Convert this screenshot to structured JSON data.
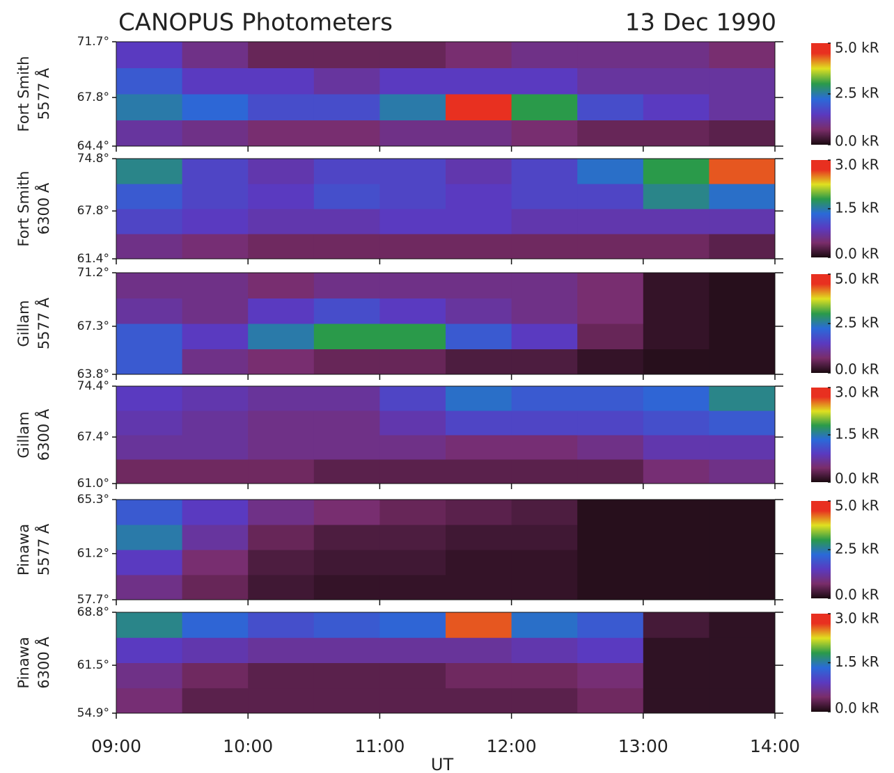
{
  "chart_data": {
    "type": "heatmap",
    "title": "CANOPUS Photometers",
    "subtitle": "13 Dec 1990",
    "xlabel": "UT",
    "xlim": [
      9,
      14
    ],
    "xticks": [
      {
        "value": 9,
        "label": "09:00"
      },
      {
        "value": 10,
        "label": "10:00"
      },
      {
        "value": 11,
        "label": "11:00"
      },
      {
        "value": 12,
        "label": "12:00"
      },
      {
        "value": 13,
        "label": "13:00"
      },
      {
        "value": 14,
        "label": "14:00"
      }
    ],
    "panels": [
      {
        "station": "Fort Smith",
        "line": "5577 Å",
        "ylim": [
          64.4,
          71.7
        ],
        "yticks": [
          {
            "value": 64.4,
            "label": "64.4°"
          },
          {
            "value": 67.8,
            "label": "67.8°"
          },
          {
            "value": 71.7,
            "label": "71.7°"
          }
        ],
        "clim": [
          0,
          5
        ],
        "cticks": [
          {
            "value": 0,
            "label": "0.0 kR"
          },
          {
            "value": 2.5,
            "label": "2.5 kR"
          },
          {
            "value": 5,
            "label": "5.0 kR"
          }
        ],
        "z": [
          [
            1.2,
            1.0,
            0.8,
            0.8,
            1.0,
            1.0,
            0.8,
            0.6,
            0.6,
            0.5
          ],
          [
            2.5,
            2.2,
            1.8,
            1.8,
            2.5,
            4.5,
            3.0,
            1.8,
            1.5,
            1.2
          ],
          [
            2.0,
            1.5,
            1.5,
            1.2,
            1.5,
            1.5,
            1.5,
            1.2,
            1.2,
            1.2
          ],
          [
            1.5,
            1.0,
            0.6,
            0.6,
            0.6,
            0.8,
            1.0,
            1.0,
            1.0,
            0.8
          ]
        ]
      },
      {
        "station": "Fort Smith",
        "line": "6300 Å",
        "ylim": [
          61.4,
          74.8
        ],
        "yticks": [
          {
            "value": 61.4,
            "label": "61.4°"
          },
          {
            "value": 67.8,
            "label": "67.8°"
          },
          {
            "value": 74.8,
            "label": "74.8°"
          }
        ],
        "clim": [
          0,
          3
        ],
        "cticks": [
          {
            "value": 0,
            "label": "0.0 kR"
          },
          {
            "value": 1.5,
            "label": "1.5 kR"
          },
          {
            "value": 3,
            "label": "3.0 kR"
          }
        ],
        "z": [
          [
            0.6,
            0.5,
            0.4,
            0.4,
            0.4,
            0.4,
            0.4,
            0.4,
            0.4,
            0.3
          ],
          [
            1.0,
            0.9,
            0.8,
            0.8,
            0.9,
            0.9,
            0.8,
            0.8,
            0.8,
            0.8
          ],
          [
            1.2,
            1.0,
            0.9,
            1.1,
            1.0,
            0.9,
            1.0,
            1.0,
            1.6,
            1.4
          ],
          [
            1.6,
            1.0,
            0.8,
            1.0,
            1.0,
            0.8,
            1.0,
            1.4,
            1.8,
            2.6
          ]
        ]
      },
      {
        "station": "Gillam",
        "line": "5577 Å",
        "ylim": [
          63.8,
          71.2
        ],
        "yticks": [
          {
            "value": 63.8,
            "label": "63.8°"
          },
          {
            "value": 67.3,
            "label": "67.3°"
          },
          {
            "value": 71.2,
            "label": "71.2°"
          }
        ],
        "clim": [
          0,
          5
        ],
        "cticks": [
          {
            "value": 0,
            "label": "0.0 kR"
          },
          {
            "value": 2.5,
            "label": "2.5 kR"
          },
          {
            "value": 5,
            "label": "5.0 kR"
          }
        ],
        "z": [
          [
            2.0,
            1.0,
            0.8,
            0.6,
            0.6,
            0.4,
            0.4,
            0.2,
            0.1,
            0.1
          ],
          [
            2.0,
            1.5,
            2.5,
            3.0,
            3.0,
            2.0,
            1.5,
            0.6,
            0.2,
            0.1
          ],
          [
            1.2,
            1.0,
            1.5,
            1.8,
            1.5,
            1.2,
            1.0,
            0.8,
            0.2,
            0.1
          ],
          [
            1.0,
            1.0,
            0.8,
            1.0,
            1.0,
            1.0,
            1.0,
            0.8,
            0.2,
            0.1
          ]
        ]
      },
      {
        "station": "Gillam",
        "line": "6300 Å",
        "ylim": [
          61.0,
          74.4
        ],
        "yticks": [
          {
            "value": 61.0,
            "label": "61.0°"
          },
          {
            "value": 67.4,
            "label": "67.4°"
          },
          {
            "value": 74.4,
            "label": "74.4°"
          }
        ],
        "clim": [
          0,
          3
        ],
        "cticks": [
          {
            "value": 0,
            "label": "0.0 kR"
          },
          {
            "value": 1.5,
            "label": "1.5 kR"
          },
          {
            "value": 3,
            "label": "3.0 kR"
          }
        ],
        "z": [
          [
            0.4,
            0.4,
            0.4,
            0.3,
            0.3,
            0.3,
            0.3,
            0.3,
            0.5,
            0.6
          ],
          [
            0.7,
            0.7,
            0.6,
            0.6,
            0.6,
            0.5,
            0.5,
            0.6,
            0.8,
            0.8
          ],
          [
            0.8,
            0.7,
            0.6,
            0.6,
            0.8,
            1.0,
            1.0,
            1.0,
            1.1,
            1.2
          ],
          [
            0.9,
            0.8,
            0.7,
            0.7,
            1.0,
            1.4,
            1.2,
            1.2,
            1.3,
            1.6
          ]
        ]
      },
      {
        "station": "Pinawa",
        "line": "5577 Å",
        "ylim": [
          57.7,
          65.3
        ],
        "yticks": [
          {
            "value": 57.7,
            "label": "57.7°"
          },
          {
            "value": 61.2,
            "label": "61.2°"
          },
          {
            "value": 65.3,
            "label": "65.3°"
          }
        ],
        "clim": [
          0,
          5
        ],
        "cticks": [
          {
            "value": 0,
            "label": "0.0 kR"
          },
          {
            "value": 2.5,
            "label": "2.5 kR"
          },
          {
            "value": 5,
            "label": "5.0 kR"
          }
        ],
        "z": [
          [
            1.0,
            0.6,
            0.3,
            0.2,
            0.2,
            0.2,
            0.2,
            0.1,
            0.1,
            0.1
          ],
          [
            1.5,
            0.8,
            0.4,
            0.3,
            0.3,
            0.2,
            0.2,
            0.1,
            0.1,
            0.1
          ],
          [
            2.5,
            1.2,
            0.6,
            0.4,
            0.4,
            0.3,
            0.3,
            0.1,
            0.1,
            0.1
          ],
          [
            2.0,
            1.5,
            1.0,
            0.8,
            0.6,
            0.5,
            0.4,
            0.1,
            0.1,
            0.1
          ]
        ]
      },
      {
        "station": "Pinawa",
        "line": "6300 Å",
        "ylim": [
          54.9,
          68.8
        ],
        "yticks": [
          {
            "value": 54.9,
            "label": "54.9°"
          },
          {
            "value": 61.5,
            "label": "61.5°"
          },
          {
            "value": 68.8,
            "label": "68.8°"
          }
        ],
        "clim": [
          0,
          3
        ],
        "cticks": [
          {
            "value": 0,
            "label": "0.0 kR"
          },
          {
            "value": 1.5,
            "label": "1.5 kR"
          },
          {
            "value": 3,
            "label": "3.0 kR"
          }
        ],
        "z": [
          [
            0.5,
            0.3,
            0.3,
            0.3,
            0.3,
            0.3,
            0.3,
            0.4,
            0.1,
            0.1
          ],
          [
            0.6,
            0.4,
            0.3,
            0.3,
            0.3,
            0.4,
            0.4,
            0.5,
            0.1,
            0.1
          ],
          [
            0.9,
            0.8,
            0.7,
            0.7,
            0.7,
            0.7,
            0.8,
            0.9,
            0.1,
            0.1
          ],
          [
            1.6,
            1.3,
            1.1,
            1.2,
            1.3,
            2.6,
            1.4,
            1.2,
            0.2,
            0.1
          ]
        ]
      }
    ]
  }
}
